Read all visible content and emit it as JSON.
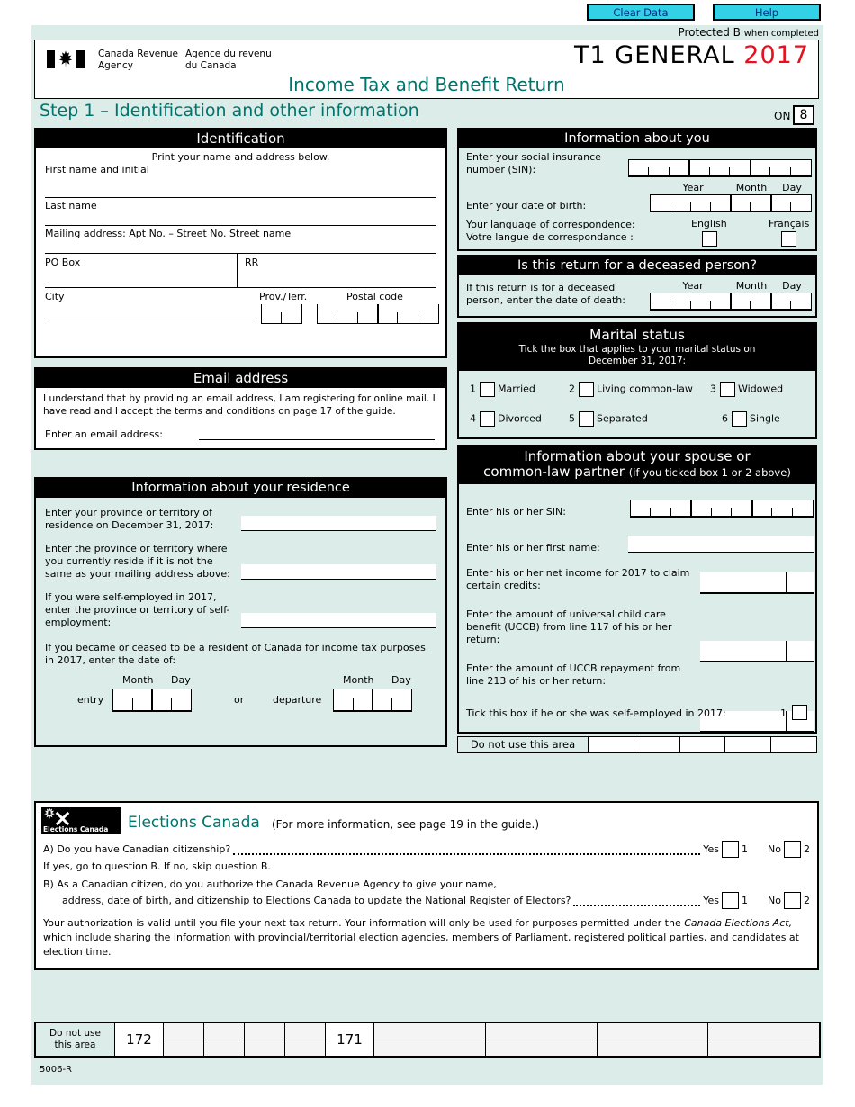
{
  "colors": {
    "page_background": "#dbece9",
    "accent_teal": "#00736c",
    "year_red": "#e8101e",
    "button_cyan": "#33d1e5",
    "header_bar": "#000000"
  },
  "icons": {
    "flag": "canada-flag-icon",
    "elections_logo": "elections-canada-logo"
  },
  "toolbar": {
    "clear_label": "Clear Data",
    "help_label": "Help",
    "protected_label": "Protected B",
    "protected_note": "when completed"
  },
  "header": {
    "agency_en_line1": "Canada Revenue",
    "agency_en_line2": "Agency",
    "agency_fr_line1": "Agence du revenu",
    "agency_fr_line2": "du Canada",
    "form_code": "T1 GENERAL",
    "tax_year": "2017",
    "form_title": "Income Tax and Benefit Return"
  },
  "step1": {
    "heading": "Step 1 – Identification and other information",
    "province_label": "ON",
    "province_code": "8"
  },
  "identification": {
    "title": "Identification",
    "instruction": "Print your name and address below.",
    "first_name_label": "First name and initial",
    "last_name_label": "Last name",
    "mailing_label": "Mailing address: Apt No. – Street No. Street name",
    "po_box_label": "PO Box",
    "rr_label": "RR",
    "city_label": "City",
    "prov_label": "Prov./Terr.",
    "postal_label": "Postal code"
  },
  "email": {
    "title": "Email address",
    "consent": "I understand that by providing an email address, I am registering for online mail. I have read and I accept the terms and conditions on page 17 of the guide.",
    "enter_label": "Enter an email address:"
  },
  "residence": {
    "title": "Information about your residence",
    "q1": "Enter your province or territory of residence on December 31, 2017:",
    "q2": "Enter the province or territory where you currently reside if it is not the same as your mailing address above:",
    "q3": "If you were self-employed in 2017, enter the province or territory of self-employment:",
    "q4": "If you became or ceased to be a resident of Canada for income tax purposes in 2017, enter the date of:",
    "entry_label": "entry",
    "or_label": "or",
    "departure_label": "departure",
    "month_label": "Month",
    "day_label": "Day"
  },
  "about_you": {
    "title": "Information about you",
    "sin_label": "Enter your social insurance number (SIN):",
    "year_label": "Year",
    "month_label": "Month",
    "day_label": "Day",
    "dob_label": "Enter your date of birth:",
    "lang_label_line1": "Your language of correspondence:",
    "lang_label_line2": "Votre langue de correspondance :",
    "english_label": "English",
    "french_label": "Français"
  },
  "deceased": {
    "title": "Is this return for a deceased person?",
    "label": "If this return is for a deceased person, person, enter the date of death:",
    "label_line1": "If this return is for a deceased",
    "label_line2": "person, enter the date of death:",
    "year_label": "Year",
    "month_label": "Month",
    "day_label": "Day"
  },
  "marital": {
    "title": "Marital status",
    "subtitle_line1": "Tick the box that applies to your marital status on",
    "subtitle_line2": "December 31, 2017:",
    "options": [
      {
        "num": "1",
        "label": "Married"
      },
      {
        "num": "2",
        "label": "Living common-law"
      },
      {
        "num": "3",
        "label": "Widowed"
      },
      {
        "num": "4",
        "label": "Divorced"
      },
      {
        "num": "5",
        "label": "Separated"
      },
      {
        "num": "6",
        "label": "Single"
      }
    ]
  },
  "spouse": {
    "title_line1": "Information about your spouse or",
    "title_line2": "common-law partner",
    "title_note": "(if you ticked box 1 or 2 above)",
    "sin_label": "Enter his or her SIN:",
    "first_name_label": "Enter his or her first name:",
    "net_income_label": "Enter his or her net income for 2017 to claim certain credits:",
    "uccb_label": "Enter the amount of universal child care benefit (UCCB) from line 117 of his or her return:",
    "uccb_repay_label": "Enter the amount of UCCB repayment from line 213 of his or her return:",
    "self_employed_label": "Tick this box if he or she was self-employed in 2017:",
    "self_employed_num": "1"
  },
  "side_admin": {
    "label": "Do not use this area"
  },
  "elections": {
    "logo_caption": "Elections Canada",
    "title": "Elections Canada",
    "subtitle": "(For more information, see page 19 in the guide.)",
    "question_a": "A)  Do you have Canadian citizenship?",
    "note_a": "If yes, go to question B. If no, skip question B.",
    "question_b_line1": "B)  As a Canadian citizen, do you authorize the Canada Revenue Agency to give your name,",
    "question_b_line2": "address, date of birth, and citizenship to Elections Canada to update the National Register of Electors?",
    "yes_label": "Yes",
    "yes_num": "1",
    "no_label": "No",
    "no_num": "2",
    "footer_part1": "Your authorization is valid until you file your next tax return. Your information will only be used for purposes permitted under the ",
    "footer_italic": "Canada Elections Act,",
    "footer_part2": " which include sharing the information with provincial/territorial election agencies, members of Parliament, registered political parties, and candidates at election time."
  },
  "bottom_admin": {
    "label_line1": "Do not use",
    "label_line2": "this area",
    "code_left": "172",
    "code_right": "171",
    "form_number": "5006-R"
  }
}
